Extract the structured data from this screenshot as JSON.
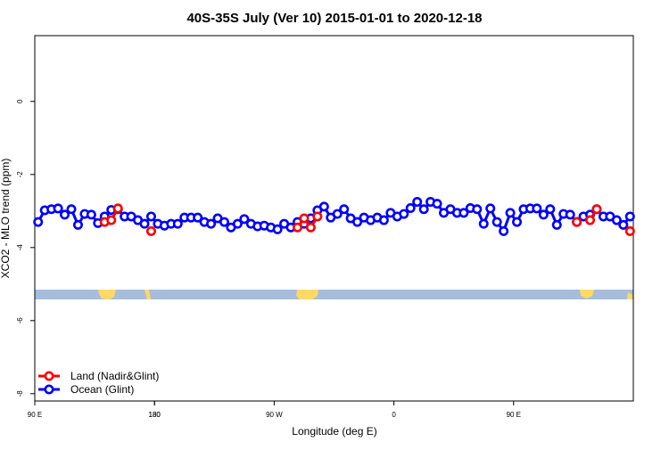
{
  "chart_data": {
    "type": "line",
    "title": "40S-35S July (Ver 10)   2015-01-01 to 2020-12-18",
    "x_label": "Longitude (deg E)",
    "y_label": "XCO2 - MLO trend (ppm)",
    "x": [
      92.5,
      97.5,
      102.5,
      107.5,
      112.5,
      117.5,
      122.5,
      127.5,
      132.5,
      137.5,
      142.5,
      147.5,
      152.5,
      157.5,
      162.5,
      167.5,
      172.5,
      177.5,
      182.5,
      187.5,
      192.5,
      197.5,
      202.5,
      207.5,
      212.5,
      217.5,
      222.5,
      227.5,
      232.5,
      237.5,
      242.5,
      247.5,
      252.5,
      257.5,
      262.5,
      267.5,
      272.5,
      277.5,
      282.5,
      287.5,
      292.5,
      297.5,
      302.5,
      307.5,
      312.5,
      317.5,
      322.5,
      327.5,
      332.5,
      337.5,
      342.5,
      347.5,
      352.5,
      357.5,
      362.5,
      367.5,
      372.5,
      377.5,
      382.5,
      387.5,
      392.5,
      397.5,
      402.5,
      407.5,
      412.5,
      417.5,
      422.5,
      427.5,
      432.5,
      437.5,
      442.5,
      447.5,
      452.5,
      457.5,
      462.5,
      467.5,
      472.5,
      477.5,
      482.5,
      487.5,
      492.5,
      497.5,
      502.5,
      507.5,
      512.5,
      517.5,
      522.5,
      527.5,
      532.5,
      537.5
    ],
    "series": [
      {
        "name": "Ocean (Glint)",
        "color": "#0000ff",
        "values": [
          -3.3,
          -2.98,
          -2.95,
          -2.93,
          -3.1,
          -2.95,
          -3.38,
          -3.08,
          -3.1,
          -3.33,
          -3.15,
          -2.97,
          -2.95,
          -3.15,
          -3.15,
          -3.25,
          -3.35,
          -3.15,
          -3.35,
          -3.4,
          -3.35,
          -3.35,
          -3.18,
          -3.18,
          -3.18,
          -3.3,
          -3.35,
          -3.2,
          -3.3,
          -3.45,
          -3.35,
          -3.22,
          -3.35,
          -3.42,
          -3.4,
          -3.45,
          -3.5,
          -3.35,
          -3.45,
          -3.3,
          -3.35,
          -3.2,
          -2.98,
          -2.88,
          -3.18,
          -3.08,
          -2.95,
          -3.2,
          -3.3,
          -3.18,
          -3.25,
          -3.18,
          -3.25,
          -3.05,
          -3.15,
          -3.08,
          -2.92,
          -2.75,
          -2.95,
          -2.75,
          -2.8,
          -3.05,
          -2.95,
          -3.05,
          -3.05,
          -2.92,
          -2.95,
          -3.35,
          -2.93,
          -3.3,
          -3.55,
          -3.05,
          -3.3,
          -2.95,
          -2.93,
          -2.93,
          -3.1,
          -2.95,
          -3.38,
          -3.08,
          -3.1,
          -3.3,
          -3.15,
          -3.1,
          -2.95,
          -3.15,
          -3.15,
          -3.25,
          -3.38,
          -3.15
        ]
      },
      {
        "name": "Land (Nadir&Glint)",
        "color": "#ff0000",
        "values": [
          null,
          null,
          null,
          null,
          null,
          null,
          null,
          null,
          null,
          null,
          -3.3,
          -3.25,
          -2.93,
          null,
          null,
          null,
          null,
          -3.55,
          null,
          null,
          null,
          null,
          null,
          null,
          null,
          null,
          null,
          null,
          null,
          null,
          null,
          null,
          null,
          null,
          null,
          null,
          null,
          null,
          null,
          -3.45,
          -3.2,
          -3.45,
          -3.15,
          null,
          null,
          null,
          null,
          null,
          null,
          null,
          null,
          null,
          null,
          null,
          null,
          null,
          null,
          null,
          null,
          null,
          null,
          null,
          null,
          null,
          null,
          null,
          null,
          null,
          null,
          null,
          null,
          null,
          null,
          null,
          null,
          null,
          null,
          null,
          null,
          null,
          null,
          -3.3,
          null,
          -3.25,
          -2.95,
          null,
          null,
          null,
          null,
          -3.55
        ]
      }
    ],
    "legend_order": [
      1,
      0
    ],
    "xlim": [
      90,
      540
    ],
    "xticks": [
      {
        "value": 90,
        "label": "90 E"
      },
      180,
      {
        "value": 270,
        "label": "90 W"
      },
      {
        "value": 360,
        "label": "0"
      },
      {
        "value": 450,
        "label": "90 E"
      },
      180.0001
    ],
    "ylim": [
      -8.2,
      1.8
    ],
    "yticks": [
      -8,
      -6,
      -4,
      -2,
      0
    ],
    "legend_position": "bottom-left"
  }
}
